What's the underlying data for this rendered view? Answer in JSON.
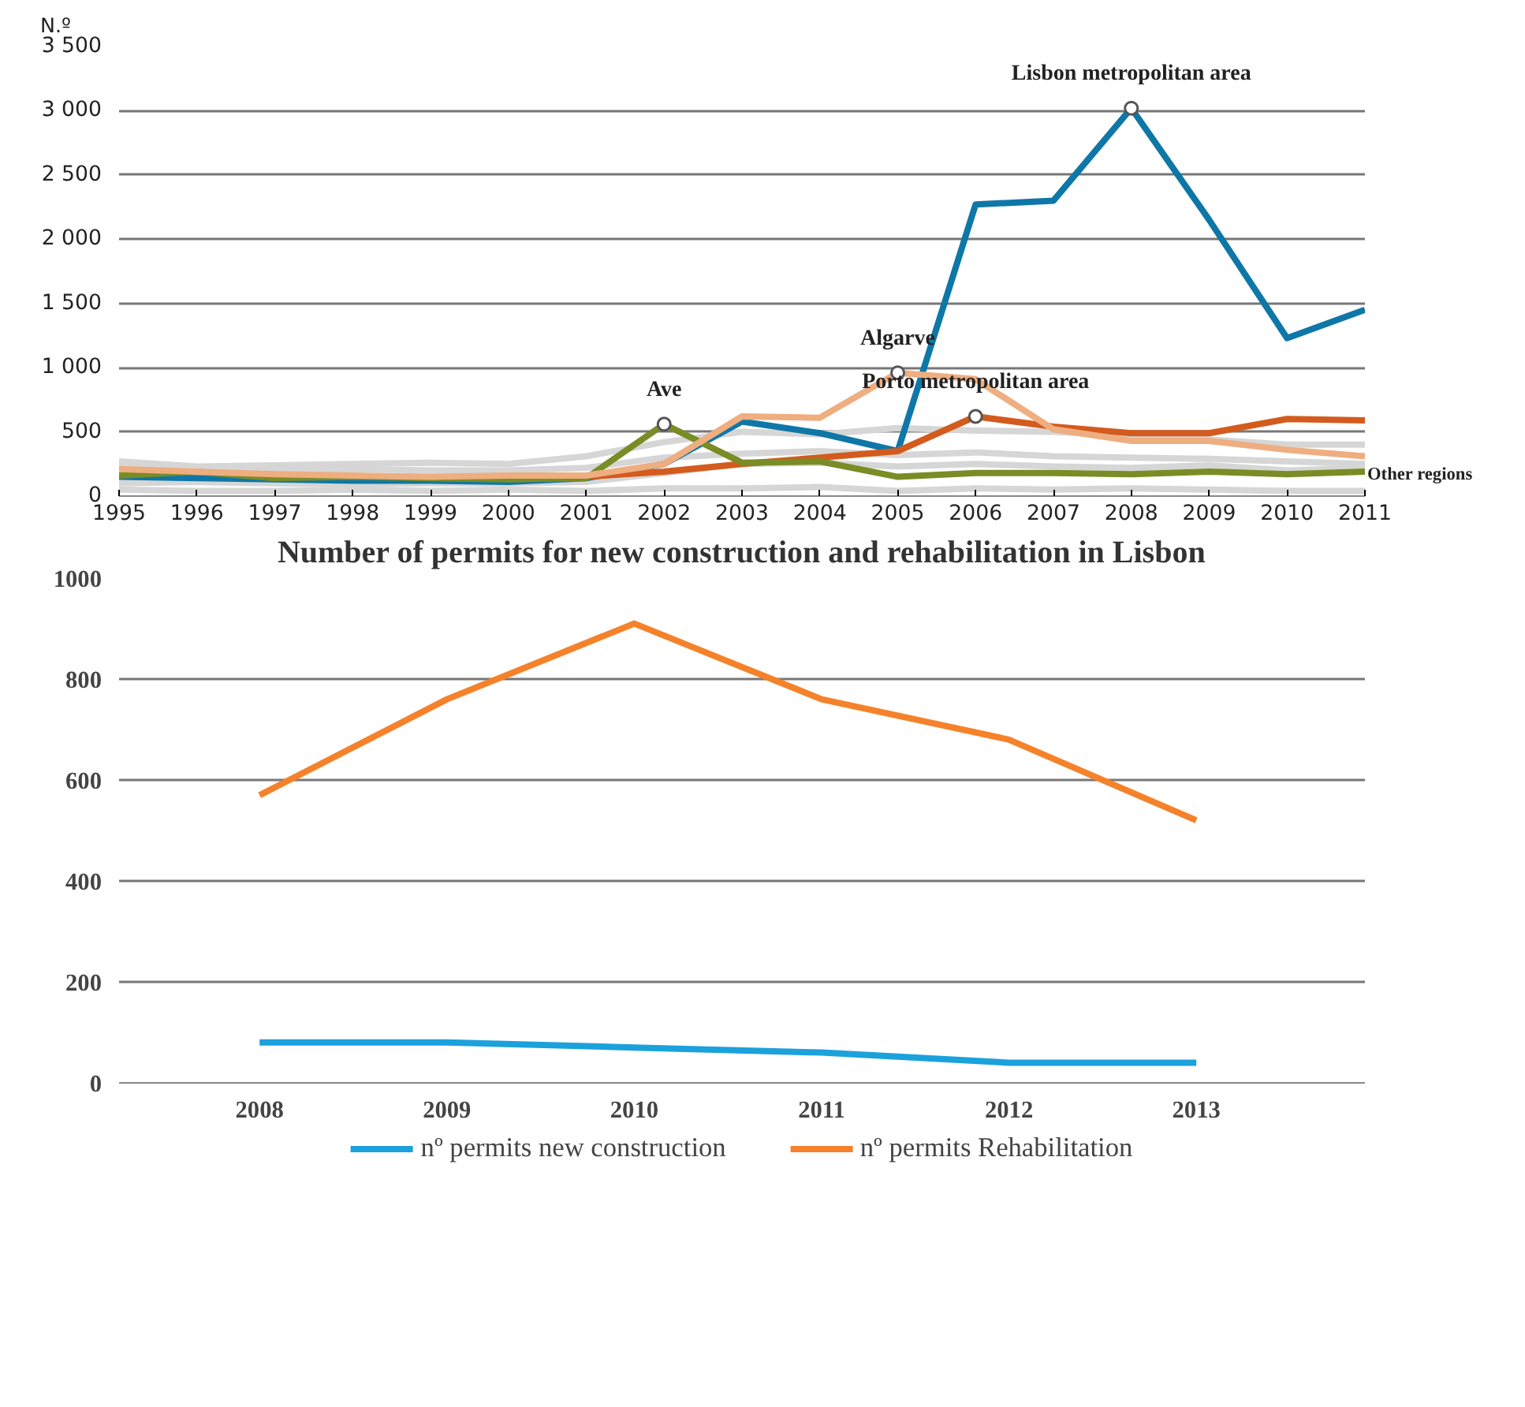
{
  "chart_data": [
    {
      "type": "line",
      "ylabel": "N.º",
      "x": [
        1995,
        1996,
        1997,
        1998,
        1999,
        2000,
        2001,
        2002,
        2003,
        2004,
        2005,
        2006,
        2007,
        2008,
        2009,
        2010,
        2011
      ],
      "xlim": [
        1995,
        2011
      ],
      "xticks": [
        1995,
        1996,
        1997,
        1998,
        1999,
        2000,
        2001,
        2002,
        2003,
        2004,
        2005,
        2006,
        2007,
        2008,
        2009,
        2010,
        2011
      ],
      "ylim": [
        0,
        3500
      ],
      "yticks": [
        {
          "value": 0,
          "label": "0"
        },
        {
          "value": 500,
          "label": "500"
        },
        {
          "value": 1000,
          "label": "1 000"
        },
        {
          "value": 1500,
          "label": "1 500"
        },
        {
          "value": 2000,
          "label": "2 000"
        },
        {
          "value": 2500,
          "label": "2 500"
        },
        {
          "value": 3000,
          "label": "3 000"
        },
        {
          "value": 3500,
          "label": "3 500"
        }
      ],
      "grid": "y",
      "legend": false,
      "series": [
        {
          "color": "#d6d6d6",
          "values": [
            50,
            40,
            40,
            50,
            40,
            50,
            40,
            60,
            60,
            70,
            40,
            60,
            50,
            60,
            50,
            40,
            40
          ]
        },
        {
          "color": "#d6d6d6",
          "values": [
            100,
            110,
            100,
            90,
            100,
            100,
            110,
            180,
            250,
            260,
            230,
            250,
            230,
            220,
            240,
            200,
            220
          ]
        },
        {
          "color": "#d6d6d6",
          "values": [
            230,
            200,
            200,
            210,
            200,
            200,
            220,
            300,
            330,
            350,
            320,
            340,
            310,
            300,
            290,
            270,
            250
          ]
        },
        {
          "name": "Other regions",
          "color": "#d6d6d6",
          "values": [
            270,
            230,
            240,
            250,
            260,
            250,
            310,
            420,
            500,
            480,
            530,
            510,
            500,
            470,
            440,
            400,
            400
          ]
        },
        {
          "color": "#0e77a8",
          "values": [
            150,
            140,
            130,
            120,
            120,
            110,
            140,
            250,
            580,
            490,
            350,
            2270,
            2300,
            3020,
            2150,
            1230,
            1450
          ]
        },
        {
          "color": "#d35b1d",
          "values": [
            null,
            null,
            null,
            null,
            null,
            null,
            150,
            190,
            250,
            300,
            350,
            620,
            540,
            490,
            490,
            600,
            590
          ]
        },
        {
          "color": "#7a8c25",
          "values": [
            160,
            190,
            140,
            150,
            140,
            130,
            140,
            560,
            260,
            270,
            150,
            180,
            180,
            170,
            190,
            170,
            190
          ]
        },
        {
          "color": "#eeae80",
          "values": [
            210,
            190,
            170,
            160,
            150,
            160,
            160,
            250,
            620,
            610,
            960,
            910,
            520,
            430,
            430,
            360,
            310
          ]
        }
      ],
      "annotations": [
        {
          "text": "Ave",
          "x": 2002,
          "y": 560
        },
        {
          "text": "Algarve",
          "x": 2005,
          "y": 960
        },
        {
          "text": "Porto metropolitan area",
          "x": 2006,
          "y": 620
        },
        {
          "text": "Lisbon metropolitan area",
          "x": 2008,
          "y": 3020
        }
      ]
    },
    {
      "type": "line",
      "title": "Number of permits for new construction and rehabilitation in Lisbon",
      "categories": [
        "2008",
        "2009",
        "2010",
        "2011",
        "2012",
        "2013"
      ],
      "ylim": [
        0,
        1000
      ],
      "yticks": [
        0,
        200,
        400,
        600,
        800,
        1000
      ],
      "grid": "y",
      "legend": "bottom",
      "series": [
        {
          "name": "nº permits new construction",
          "color": "#1ba1dc",
          "values": [
            80,
            80,
            70,
            60,
            40,
            40
          ]
        },
        {
          "name": "nº permits Rehabilitation",
          "color": "#f5822a",
          "values": [
            570,
            760,
            910,
            760,
            680,
            520
          ]
        }
      ]
    }
  ]
}
